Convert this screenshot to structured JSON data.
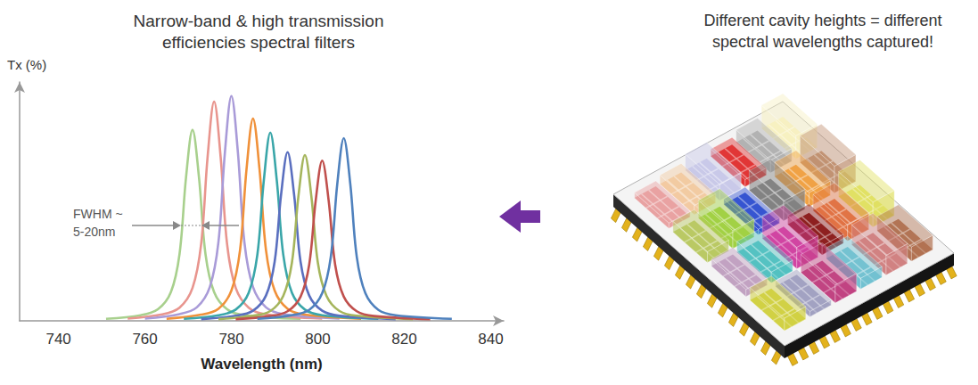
{
  "chart_data": {
    "type": "line",
    "title": "Narrow-band & high transmission efficiencies spectral filters",
    "x_label": "Wavelength (nm)",
    "y_label": "Tx (%)",
    "xlim": [
      731,
      843
    ],
    "xticks": [
      740,
      760,
      780,
      800,
      820,
      840
    ],
    "ylim": [
      0,
      85
    ],
    "yticks": [],
    "tick_labels": "x",
    "grid": false,
    "annotation": [
      "FWHM ~",
      "5-20nm"
    ],
    "series": [
      {
        "color": "#a8d08d",
        "x": [
          751,
          759,
          763,
          766,
          768,
          769.5,
          771,
          772.5,
          774,
          776,
          779,
          783,
          796
        ],
        "values": [
          0.7,
          2,
          4.1,
          10.2,
          23.8,
          51,
          68,
          51,
          23.8,
          10.2,
          4.1,
          2,
          0.7
        ]
      },
      {
        "color": "#e8958e",
        "x": [
          756,
          764,
          768,
          771,
          773,
          774.5,
          776,
          777.5,
          779,
          781,
          784,
          788,
          801
        ],
        "values": [
          0.8,
          2.3,
          4.7,
          11.7,
          27.3,
          58.5,
          78,
          58.5,
          27.3,
          11.7,
          4.7,
          2.3,
          0.8
        ]
      },
      {
        "color": "#a99bd8",
        "x": [
          760,
          768,
          772,
          775,
          777,
          778.5,
          780,
          781.5,
          783,
          785,
          788,
          792,
          805
        ],
        "values": [
          0.8,
          2.4,
          4.8,
          12,
          28,
          60,
          80,
          60,
          28,
          12,
          4.8,
          2.4,
          0.8
        ]
      },
      {
        "color": "#f0913a",
        "x": [
          765,
          773,
          777,
          780,
          782,
          783.5,
          785,
          786.5,
          788,
          790,
          793,
          797,
          810
        ],
        "values": [
          0.7,
          2.2,
          4.3,
          10.8,
          25.2,
          54,
          72,
          54,
          25.2,
          10.8,
          4.3,
          2.2,
          0.7
        ]
      },
      {
        "color": "#3aa6a9",
        "x": [
          769,
          777,
          781,
          784,
          786,
          787.5,
          789,
          790.5,
          792,
          794,
          797,
          801,
          814
        ],
        "values": [
          0.7,
          2,
          4,
          10,
          23.5,
          50,
          67,
          50,
          23.5,
          10,
          4,
          2,
          0.7
        ]
      },
      {
        "color": "#5a6fbf",
        "x": [
          773,
          781,
          785,
          788,
          790,
          791.5,
          793,
          794.5,
          796,
          798,
          801,
          805,
          818
        ],
        "values": [
          0.6,
          1.8,
          3.6,
          9,
          21,
          45,
          60,
          45,
          21,
          9,
          3.6,
          1.8,
          0.6
        ]
      },
      {
        "color": "#a5b55c",
        "x": [
          777,
          785,
          789,
          792,
          794,
          795.5,
          797,
          798.5,
          800,
          802,
          805,
          809,
          822
        ],
        "values": [
          0.6,
          1.8,
          3.5,
          8.9,
          20.7,
          44.3,
          59,
          44.3,
          20.7,
          8.9,
          3.5,
          1.8,
          0.6
        ]
      },
      {
        "color": "#c0504d",
        "x": [
          781,
          789,
          793,
          796,
          798,
          799.5,
          801,
          802.5,
          804,
          806,
          809,
          813,
          826
        ],
        "values": [
          0.6,
          1.7,
          3.4,
          8.6,
          20,
          42.8,
          57,
          42.8,
          20,
          8.6,
          3.4,
          1.7,
          0.6
        ]
      },
      {
        "color": "#4f81bd",
        "x": [
          786,
          794,
          798,
          801,
          803,
          804.5,
          806,
          807.5,
          809,
          811,
          814,
          818,
          831
        ],
        "values": [
          0.7,
          2,
          3.9,
          9.8,
          22.8,
          48.8,
          65,
          48.8,
          22.8,
          9.8,
          3.9,
          2,
          0.7
        ]
      }
    ]
  },
  "illustration": {
    "caption": "Different cavity heights = different spectral wavelengths captured!"
  }
}
